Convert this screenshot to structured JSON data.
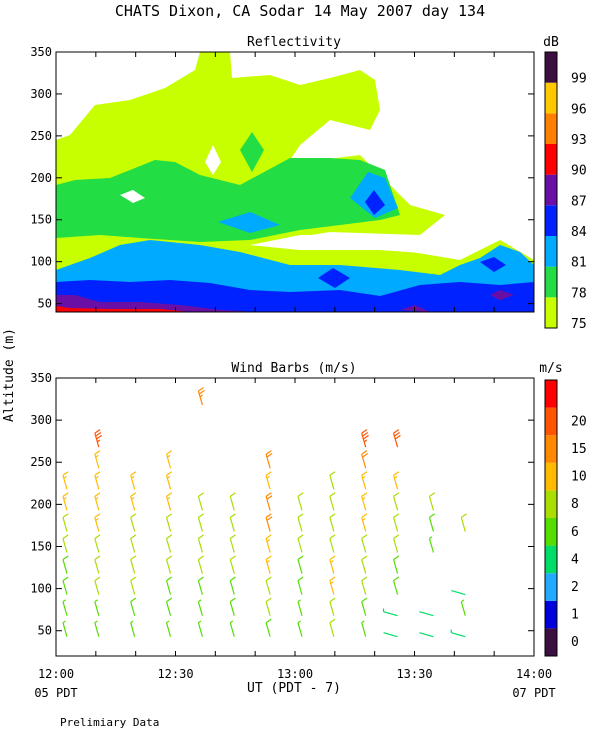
{
  "page_title": "CHATS Dixon, CA  Sodar  14 May 2007  day 134",
  "shared_ylabel": "Altitude (m)",
  "footer": {
    "left_time": "05 PDT",
    "right_time": "07 PDT",
    "note": "Prelimiary Data"
  },
  "chart_data": [
    {
      "type": "heatmap",
      "title": "Reflectivity",
      "ylim": [
        40,
        350
      ],
      "xlim": [
        "12:00",
        "14:00"
      ],
      "yticks": [
        50,
        100,
        150,
        200,
        250,
        300,
        350
      ],
      "colorbar": {
        "unit": "dB",
        "levels": [
          75,
          78,
          81,
          84,
          87,
          90,
          93,
          96,
          99
        ],
        "colors": [
          "#c8ff00",
          "#22dd44",
          "#00aaff",
          "#0022ff",
          "#6a0fa5",
          "#ff0000",
          "#ff7f00",
          "#ffc800",
          "#3b1040"
        ]
      },
      "bands": [
        {
          "level": 75,
          "description": "broad coverage 40-350 m"
        },
        {
          "level": 78,
          "description": "approx 100-200 m"
        },
        {
          "level": 81,
          "description": "approx 70-130 m"
        },
        {
          "level": 84,
          "description": "approx 45-90 m"
        },
        {
          "level": 87,
          "description": "approx 40-60 m"
        },
        {
          "level": 90,
          "description": "near surface at 12:00"
        }
      ]
    },
    {
      "type": "scatter",
      "title": "Wind Barbs (m/s)",
      "xlabel": "UT  (PDT - 7)",
      "xticks": [
        "12:00",
        "12:30",
        "13:00",
        "13:30",
        "14:00"
      ],
      "ylim": [
        20,
        350
      ],
      "yticks": [
        50,
        100,
        150,
        200,
        250,
        300,
        350
      ],
      "colorbar": {
        "unit": "m/s",
        "levels": [
          0,
          1,
          2,
          4,
          6,
          8,
          10,
          15,
          20
        ],
        "colors": [
          "#3b1040",
          "#0000dd",
          "#22aaff",
          "#00dd66",
          "#55dd00",
          "#aadd00",
          "#ffbb00",
          "#ff8800",
          "#ff5500",
          "#ff0000"
        ]
      },
      "times_ut": [
        "12:02",
        "12:10",
        "12:19",
        "12:28",
        "12:36",
        "12:44",
        "12:53",
        "13:01",
        "13:09",
        "13:17",
        "13:25",
        "13:34",
        "13:42"
      ],
      "altitudes_m": [
        50,
        75,
        100,
        125,
        150,
        175,
        200,
        225,
        250,
        275,
        325
      ],
      "speeds_ms": [
        [
          4,
          4,
          5,
          5,
          6,
          7,
          8,
          9,
          null,
          null,
          null
        ],
        [
          4,
          4,
          6,
          6,
          7,
          8,
          8,
          9,
          9,
          18,
          null
        ],
        [
          4,
          5,
          6,
          6,
          7,
          7,
          8,
          9,
          null,
          null,
          null
        ],
        [
          4,
          5,
          5,
          6,
          7,
          7,
          8,
          9,
          9,
          null,
          null
        ],
        [
          4,
          4,
          5,
          6,
          6,
          6,
          7,
          null,
          null,
          null,
          14
        ],
        [
          4,
          5,
          5,
          6,
          6,
          7,
          7,
          null,
          null,
          null,
          null
        ],
        [
          5,
          6,
          7,
          8,
          9,
          10,
          10,
          9,
          10,
          null,
          null
        ],
        [
          4,
          4,
          5,
          5,
          6,
          6,
          7,
          null,
          null,
          null,
          null
        ],
        [
          7,
          7,
          8,
          8,
          7,
          6,
          6,
          7,
          null,
          null,
          null
        ],
        [
          4,
          5,
          6,
          6,
          7,
          8,
          9,
          9,
          10,
          19,
          null
        ],
        [
          2,
          3,
          5,
          5,
          6,
          6,
          7,
          9,
          null,
          17,
          null
        ],
        [
          2,
          2,
          null,
          null,
          4,
          5,
          6,
          null,
          null,
          null,
          null
        ],
        [
          3,
          4,
          2,
          null,
          null,
          6,
          null,
          null,
          null,
          null,
          null
        ]
      ]
    }
  ]
}
